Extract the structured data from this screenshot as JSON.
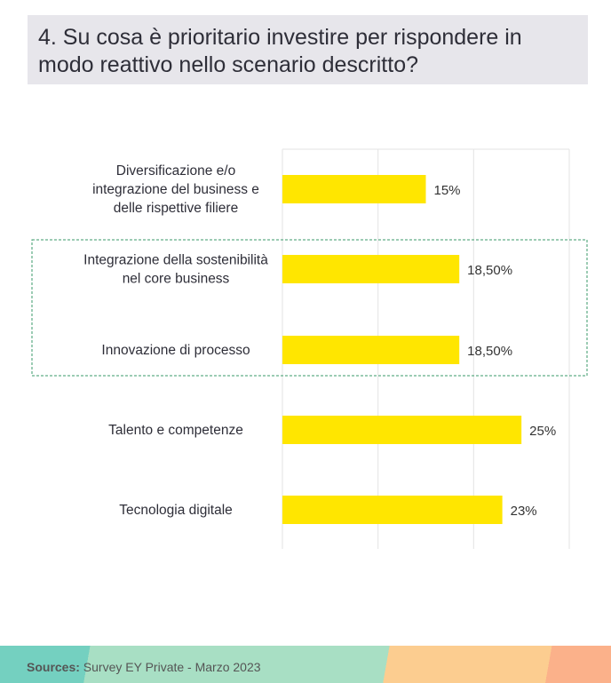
{
  "title": "4. Su cosa è prioritario investire per rispondere in modo reattivo nello scenario descritto?",
  "chart_data": {
    "type": "bar",
    "orientation": "horizontal",
    "title": "4. Su cosa è prioritario investire per rispondere in modo reattivo nello scenario descritto?",
    "categories": [
      [
        "Diversificazione e/o",
        "integrazione del business e",
        "delle rispettive filiere"
      ],
      [
        "Integrazione della sostenibilità",
        "nel core business"
      ],
      [
        "Innovazione di processo"
      ],
      [
        "Talento e competenze"
      ],
      [
        "Tecnologia digitale"
      ]
    ],
    "values": [
      15,
      18.5,
      18.5,
      25,
      23
    ],
    "labels": [
      "15%",
      "18,50%",
      "18,50%",
      "25%",
      "23%"
    ],
    "xlim": [
      0,
      30
    ],
    "grid": true,
    "highlighted": [
      1,
      2
    ],
    "bar_color": "#ffe600"
  },
  "footer": {
    "sources_label": "Sources:",
    "sources_text": " Survey EY Private - Marzo 2023"
  }
}
